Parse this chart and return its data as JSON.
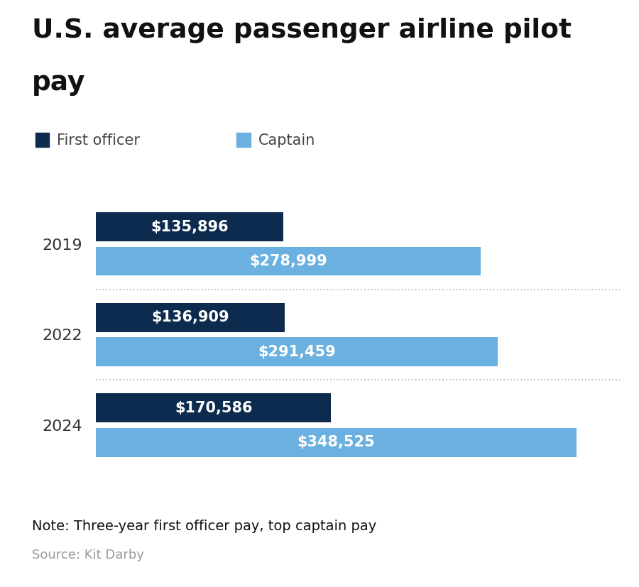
{
  "title_line1": "U.S. average passenger airline pilot",
  "title_line2": "pay",
  "years": [
    "2019",
    "2022",
    "2024"
  ],
  "first_officer_values": [
    135896,
    136909,
    170586
  ],
  "captain_values": [
    278999,
    291459,
    348525
  ],
  "first_officer_labels": [
    "$135,896",
    "$136,909",
    "$170,586"
  ],
  "captain_labels": [
    "$278,999",
    "$291,459",
    "$348,525"
  ],
  "first_officer_color": "#0d2b4e",
  "captain_color": "#6ab0e0",
  "background_color": "#ffffff",
  "note_text": "Note: Three-year first officer pay, top captain pay",
  "source_text": "Source: Kit Darby",
  "legend_labels": [
    "First officer",
    "Captain"
  ],
  "xlim": [
    0,
    380000
  ],
  "bar_height": 0.32,
  "title_fontsize": 27,
  "label_fontsize": 15,
  "tick_fontsize": 16,
  "legend_fontsize": 15,
  "note_fontsize": 14,
  "source_fontsize": 13,
  "year_label_color": "#333333",
  "note_color": "#111111",
  "source_color": "#999999",
  "divider_color": "#bbbbbb",
  "text_label_color": "#ffffff"
}
